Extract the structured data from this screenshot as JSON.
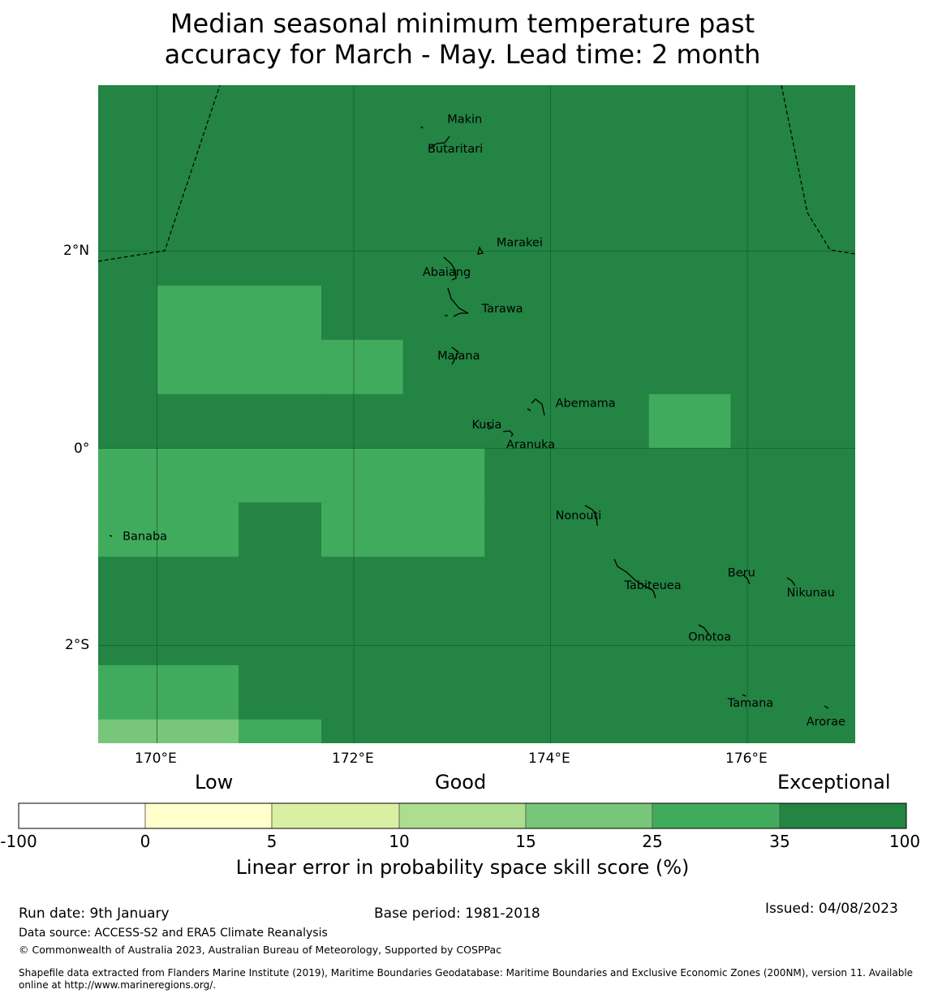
{
  "title_line1": "Median seasonal minimum temperature past",
  "title_line2": "accuracy for March - May. Lead time: 2 month",
  "lon_labels": [
    "170°E",
    "172°E",
    "174°E",
    "176°E"
  ],
  "lat_labels": [
    "2°N",
    "0°",
    "2°S"
  ],
  "islands": [
    {
      "name": "Makin",
      "lon": 172.95,
      "lat": 3.3
    },
    {
      "name": "Butaritari",
      "lon": 172.75,
      "lat": 3.0
    },
    {
      "name": "Marakei",
      "lon": 173.45,
      "lat": 2.05
    },
    {
      "name": "Abaiang",
      "lon": 172.7,
      "lat": 1.75
    },
    {
      "name": "Tarawa",
      "lon": 173.3,
      "lat": 1.38
    },
    {
      "name": "Maiana",
      "lon": 172.85,
      "lat": 0.9
    },
    {
      "name": "Abemama",
      "lon": 174.05,
      "lat": 0.42
    },
    {
      "name": "Kuria",
      "lon": 173.2,
      "lat": 0.2
    },
    {
      "name": "Aranuka",
      "lon": 173.55,
      "lat": 0.0
    },
    {
      "name": "Banaba",
      "lon": 169.65,
      "lat": -0.93
    },
    {
      "name": "Nonouti",
      "lon": 174.05,
      "lat": -0.72
    },
    {
      "name": "Tabiteuea",
      "lon": 174.75,
      "lat": -1.43
    },
    {
      "name": "Beru",
      "lon": 175.8,
      "lat": -1.3
    },
    {
      "name": "Nikunau",
      "lon": 176.4,
      "lat": -1.5
    },
    {
      "name": "Onotoa",
      "lon": 175.4,
      "lat": -1.95
    },
    {
      "name": "Tamana",
      "lon": 175.8,
      "lat": -2.62
    },
    {
      "name": "Arorae",
      "lon": 176.6,
      "lat": -2.81
    }
  ],
  "skill_cells": [
    {
      "lon0": 170.0,
      "lon1": 171.67,
      "lat0": 0.55,
      "lat1": 1.65,
      "category": "25-35"
    },
    {
      "lon0": 171.67,
      "lon1": 172.5,
      "lat0": 0.55,
      "lat1": 1.1,
      "category": "25-35"
    },
    {
      "lon0": 175.0,
      "lon1": 175.83,
      "lat0": 0.0,
      "lat1": 0.55,
      "category": "25-35"
    },
    {
      "lon0": 169.4,
      "lon1": 173.33,
      "lat0": -0.55,
      "lat1": 0.0,
      "category": "25-35"
    },
    {
      "lon0": 169.4,
      "lon1": 170.83,
      "lat0": -1.1,
      "lat1": -0.55,
      "category": "25-35"
    },
    {
      "lon0": 171.67,
      "lon1": 173.33,
      "lat0": -1.1,
      "lat1": -0.55,
      "category": "25-35"
    },
    {
      "lon0": 169.4,
      "lon1": 170.83,
      "lat0": -2.75,
      "lat1": -2.2,
      "category": "25-35"
    },
    {
      "lon0": 170.83,
      "lon1": 171.67,
      "lat0": -3.0,
      "lat1": -2.75,
      "category": "25-35"
    },
    {
      "lon0": 169.4,
      "lon1": 170.83,
      "lat0": -3.0,
      "lat1": -2.75,
      "category": "15-25"
    }
  ],
  "background_category": "35-100",
  "colorbar": {
    "category_labels": [
      "Low",
      "Good",
      "Exceptional"
    ],
    "ticks": [
      "-100",
      "0",
      "5",
      "10",
      "15",
      "25",
      "35",
      "100"
    ],
    "colors": [
      "#ffffff",
      "#ffffcc",
      "#d9f0a3",
      "#addd8e",
      "#78c679",
      "#41ab5d",
      "#238443"
    ],
    "title": "Linear error in probability space skill score (%)"
  },
  "footer": {
    "run_date": "Run date: 9th January",
    "base_period": "Base period: 1981-2018",
    "issued": "Issued: 04/08/2023",
    "data_source": "Data source: ACCESS-S2 and ERA5 Climate Reanalysis",
    "copyright": "© Commonwealth of Australia 2023, Australian Bureau of Meteorology, Supported by COSPPac",
    "shapefile_line1": "Shapefile data extracted from Flanders Marine Institute (2019), Maritime Boundaries Geodatabase: Maritime Boundaries and Exclusive Economic Zones (200NM), version 11. Available",
    "shapefile_line2": "online at http://www.marineregions.org/."
  }
}
